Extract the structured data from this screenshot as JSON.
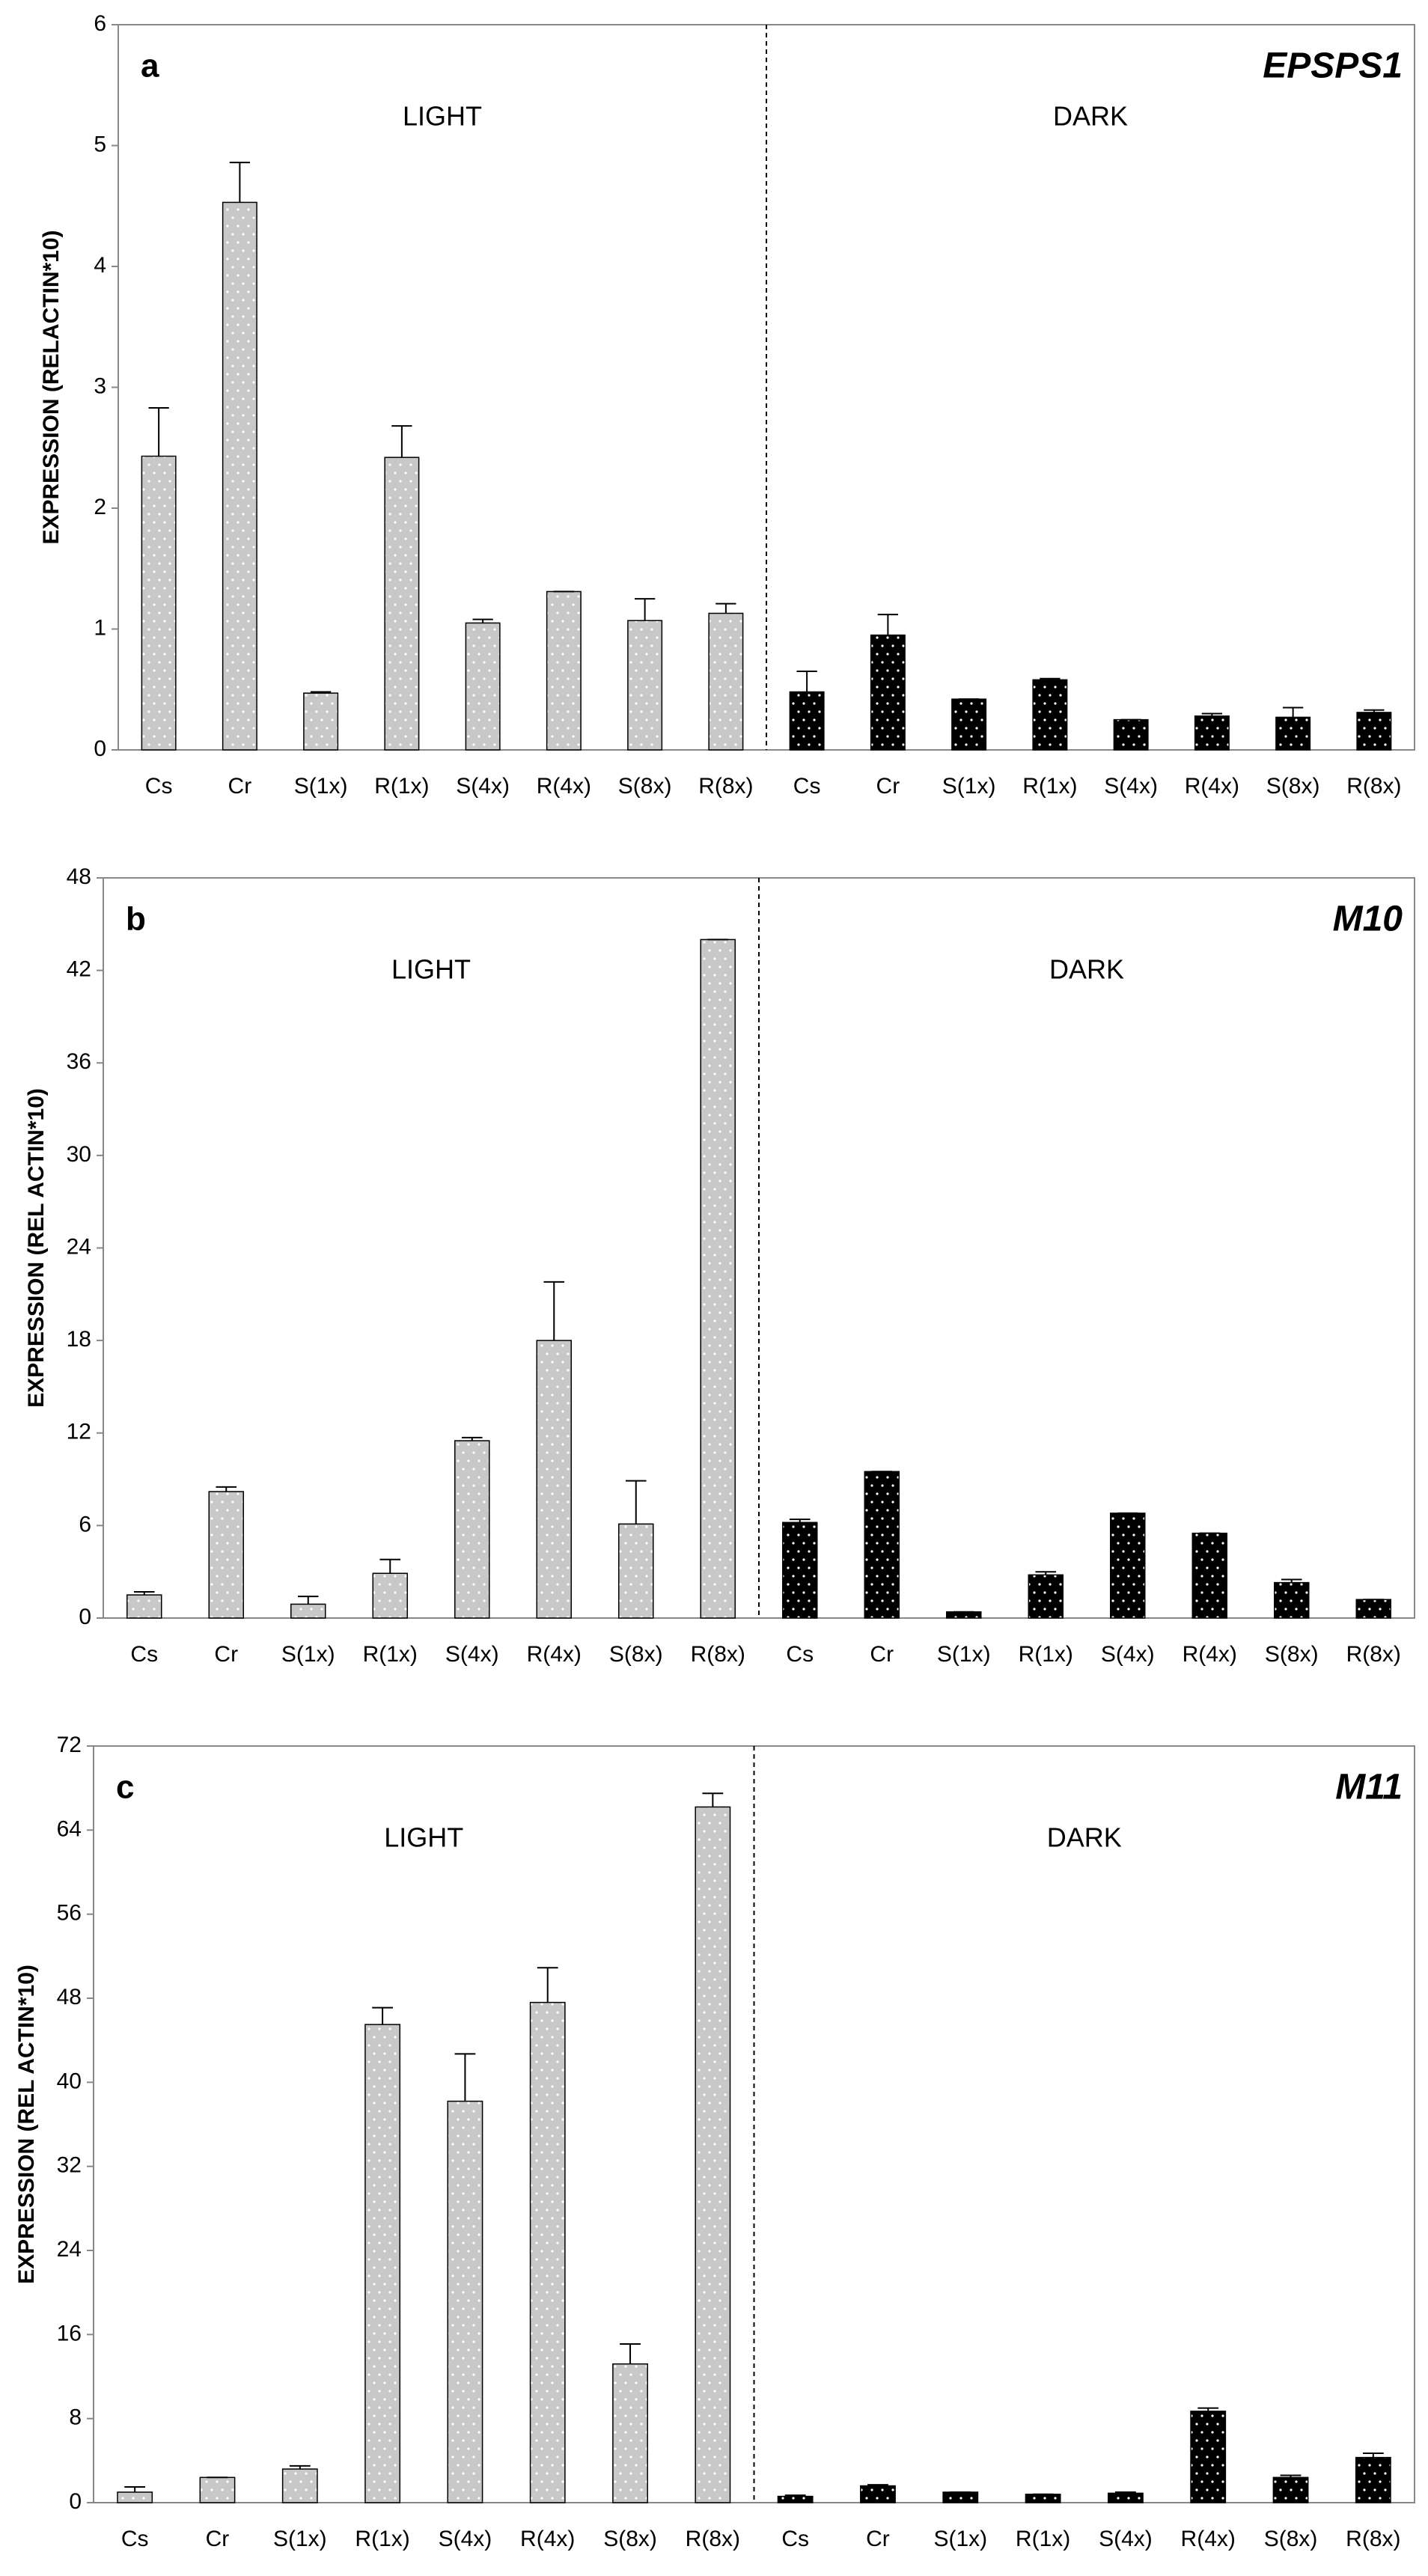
{
  "chart_data": [
    {
      "type": "bar",
      "panel": "a",
      "title": "EPSPS1",
      "ylabel": "EXPRESSION (RELACTIN*10)",
      "categories": [
        "Cs",
        "Cr",
        "S(1x)",
        "R(1x)",
        "S(4x)",
        "R(4x)",
        "S(8x)",
        "R(8x)"
      ],
      "series": [
        {
          "name": "LIGHT",
          "color": "#c8c8c8",
          "values": [
            2.43,
            4.53,
            0.47,
            2.42,
            1.05,
            1.31,
            1.07,
            1.13
          ],
          "errors": [
            0.4,
            0.33,
            0.01,
            0.26,
            0.03,
            0,
            0.18,
            0.08
          ]
        },
        {
          "name": "DARK",
          "color": "#000000",
          "values": [
            0.48,
            0.95,
            0.42,
            0.58,
            0.25,
            0.28,
            0.27,
            0.31
          ],
          "errors": [
            0.17,
            0.17,
            0,
            0.01,
            0,
            0.02,
            0.08,
            0.02
          ]
        }
      ],
      "ylim": [
        0,
        6
      ],
      "yticks": [
        0,
        1,
        2,
        3,
        4,
        5,
        6
      ]
    },
    {
      "type": "bar",
      "panel": "b",
      "title": "M10",
      "ylabel": "EXPRESSION (REL ACTIN*10)",
      "categories": [
        "Cs",
        "Cr",
        "S(1x)",
        "R(1x)",
        "S(4x)",
        "R(4x)",
        "S(8x)",
        "R(8x)"
      ],
      "series": [
        {
          "name": "LIGHT",
          "color": "#c8c8c8",
          "values": [
            1.5,
            8.2,
            0.9,
            2.9,
            11.5,
            18.0,
            6.1,
            44.0
          ],
          "errors": [
            0.2,
            0.3,
            0.5,
            0.9,
            0.2,
            3.8,
            2.8,
            0
          ]
        },
        {
          "name": "DARK",
          "color": "#000000",
          "values": [
            6.2,
            9.5,
            0.4,
            2.8,
            6.8,
            5.5,
            2.3,
            1.2
          ],
          "errors": [
            0.2,
            0,
            0,
            0.2,
            0,
            0,
            0.2,
            0
          ]
        }
      ],
      "ylim": [
        0,
        48
      ],
      "yticks": [
        0,
        6,
        12,
        18,
        24,
        30,
        36,
        42,
        48
      ]
    },
    {
      "type": "bar",
      "panel": "c",
      "title": "M11",
      "ylabel": "EXPRESSION (REL ACTIN*10)",
      "categories": [
        "Cs",
        "Cr",
        "S(1x)",
        "R(1x)",
        "S(4x)",
        "R(4x)",
        "S(8x)",
        "R(8x)"
      ],
      "series": [
        {
          "name": "LIGHT",
          "color": "#c8c8c8",
          "values": [
            1.0,
            2.4,
            3.2,
            45.5,
            38.2,
            47.6,
            13.2,
            66.2
          ],
          "errors": [
            0.5,
            0,
            0.3,
            1.6,
            4.5,
            3.3,
            1.9,
            1.3
          ]
        },
        {
          "name": "DARK",
          "color": "#000000",
          "values": [
            0.6,
            1.6,
            1.0,
            0.8,
            0.9,
            8.7,
            2.4,
            4.3
          ],
          "errors": [
            0.1,
            0.1,
            0,
            0,
            0.1,
            0.3,
            0.2,
            0.4
          ]
        }
      ],
      "ylim": [
        0,
        72
      ],
      "yticks": [
        0,
        8,
        16,
        24,
        32,
        40,
        48,
        56,
        64,
        72
      ]
    }
  ]
}
